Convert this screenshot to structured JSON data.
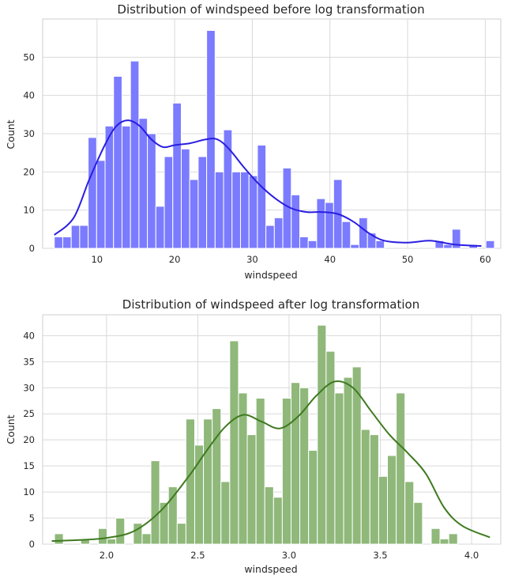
{
  "chart_data": [
    {
      "type": "histogram",
      "title": "Distribution of windspeed before log transformation",
      "xlabel": "windspeed",
      "ylabel": "Count",
      "xlim": [
        3,
        62
      ],
      "ylim": [
        0,
        60
      ],
      "xticks": [
        10,
        20,
        30,
        40,
        50,
        60
      ],
      "yticks": [
        0,
        10,
        20,
        30,
        40,
        50
      ],
      "grid": true,
      "bin_start": 4.5,
      "bin_width": 1.09,
      "counts": [
        3,
        3,
        6,
        6,
        29,
        23,
        32,
        45,
        32,
        49,
        34,
        30,
        11,
        24,
        38,
        26,
        18,
        24,
        57,
        20,
        31,
        20,
        20,
        19,
        27,
        6,
        8,
        21,
        14,
        3,
        2,
        13,
        12,
        18,
        7,
        1,
        8,
        4,
        2,
        0,
        0,
        0,
        0,
        0,
        0,
        2,
        1,
        5,
        0,
        1,
        0,
        2
      ],
      "bar_color": "#7b7bff",
      "bar_edge": "#ffffff",
      "kde": {
        "color": "#2a1ee0",
        "points": [
          [
            4.5,
            3.5
          ],
          [
            7,
            8
          ],
          [
            9,
            18
          ],
          [
            11,
            27
          ],
          [
            12.5,
            32
          ],
          [
            14,
            33.5
          ],
          [
            15.5,
            32
          ],
          [
            17,
            28.5
          ],
          [
            18.5,
            26.5
          ],
          [
            20,
            27
          ],
          [
            22,
            27.5
          ],
          [
            24,
            28.5
          ],
          [
            25.5,
            28.5
          ],
          [
            27,
            26
          ],
          [
            29,
            21
          ],
          [
            31,
            16.5
          ],
          [
            33,
            13
          ],
          [
            35,
            10.5
          ],
          [
            37,
            9.5
          ],
          [
            39,
            9.5
          ],
          [
            41,
            9
          ],
          [
            43,
            7
          ],
          [
            45,
            4
          ],
          [
            47,
            2
          ],
          [
            50,
            1.5
          ],
          [
            53,
            2
          ],
          [
            56,
            1
          ],
          [
            59.5,
            0.6
          ]
        ]
      }
    },
    {
      "type": "histogram",
      "title": "Distribution of windspeed after log transformation",
      "xlabel": "windspeed",
      "ylabel": "Count",
      "xlim": [
        1.65,
        4.16
      ],
      "ylim": [
        0,
        44
      ],
      "xticks": [
        "2.0",
        "2.5",
        "3.0",
        "3.5",
        "4.0"
      ],
      "yticks": [
        0,
        5,
        10,
        15,
        20,
        25,
        30,
        35,
        40
      ],
      "grid": true,
      "bin_start": 1.715,
      "bin_width": 0.048,
      "counts": [
        2,
        0,
        0,
        1,
        0,
        3,
        1,
        5,
        0,
        4,
        2,
        16,
        8,
        11,
        4,
        24,
        19,
        24,
        26,
        12,
        39,
        29,
        21,
        28,
        11,
        9,
        28,
        31,
        30,
        18,
        42,
        37,
        29,
        32,
        34,
        22,
        21,
        13,
        17,
        29,
        12,
        8,
        0,
        3,
        1,
        2
      ],
      "bar_color": "#8fb87a",
      "bar_edge": "#ffffff",
      "kde": {
        "color": "#3e7a1f",
        "points": [
          [
            1.7,
            0.6
          ],
          [
            1.85,
            0.8
          ],
          [
            2.0,
            1.2
          ],
          [
            2.15,
            2.5
          ],
          [
            2.3,
            6.5
          ],
          [
            2.45,
            13
          ],
          [
            2.55,
            18
          ],
          [
            2.65,
            22.5
          ],
          [
            2.75,
            24.8
          ],
          [
            2.85,
            23.5
          ],
          [
            2.95,
            22.2
          ],
          [
            3.05,
            24.5
          ],
          [
            3.15,
            28.5
          ],
          [
            3.25,
            31.2
          ],
          [
            3.35,
            30
          ],
          [
            3.45,
            25.5
          ],
          [
            3.55,
            21
          ],
          [
            3.65,
            17.5
          ],
          [
            3.75,
            13.5
          ],
          [
            3.85,
            7
          ],
          [
            3.95,
            3.5
          ],
          [
            4.1,
            1.3
          ]
        ]
      }
    }
  ]
}
